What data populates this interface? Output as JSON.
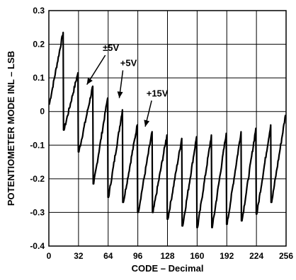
{
  "chart_data": {
    "type": "line",
    "xlabel": "CODE – Decimal",
    "ylabel": "POTENTIOMETER MODE INL – LSB",
    "xlim": [
      0,
      256
    ],
    "ylim": [
      -0.4,
      0.3
    ],
    "x_ticks": [
      "0",
      "32",
      "64",
      "96",
      "128",
      "160",
      "192",
      "224",
      "256"
    ],
    "y_ticks": [
      "0.3",
      "0.2",
      "0.1",
      "0",
      "-0.1",
      "-0.2",
      "-0.3",
      "-0.4"
    ],
    "grid": true,
    "period": 16,
    "peaks": [
      0.235,
      0.115,
      0.075,
      0.04,
      0.005,
      -0.04,
      -0.06,
      -0.07,
      -0.08,
      -0.075,
      -0.07,
      -0.065,
      -0.06,
      -0.05,
      -0.04,
      -0.01
    ],
    "troughs": [
      0.02,
      -0.055,
      -0.12,
      -0.215,
      -0.255,
      -0.27,
      -0.3,
      -0.3,
      -0.32,
      -0.34,
      -0.345,
      -0.345,
      -0.335,
      -0.325,
      -0.305,
      -0.27
    ],
    "annotations": [
      {
        "text": "±5V",
        "x": 67,
        "y": 0.18,
        "arrow_to": [
          41,
          0.08
        ]
      },
      {
        "text": "+5V",
        "x": 86,
        "y": 0.135,
        "arrow_to": [
          76,
          0.04
        ]
      },
      {
        "text": "+15V",
        "x": 117,
        "y": 0.045,
        "arrow_to": [
          104,
          -0.045
        ]
      }
    ]
  }
}
